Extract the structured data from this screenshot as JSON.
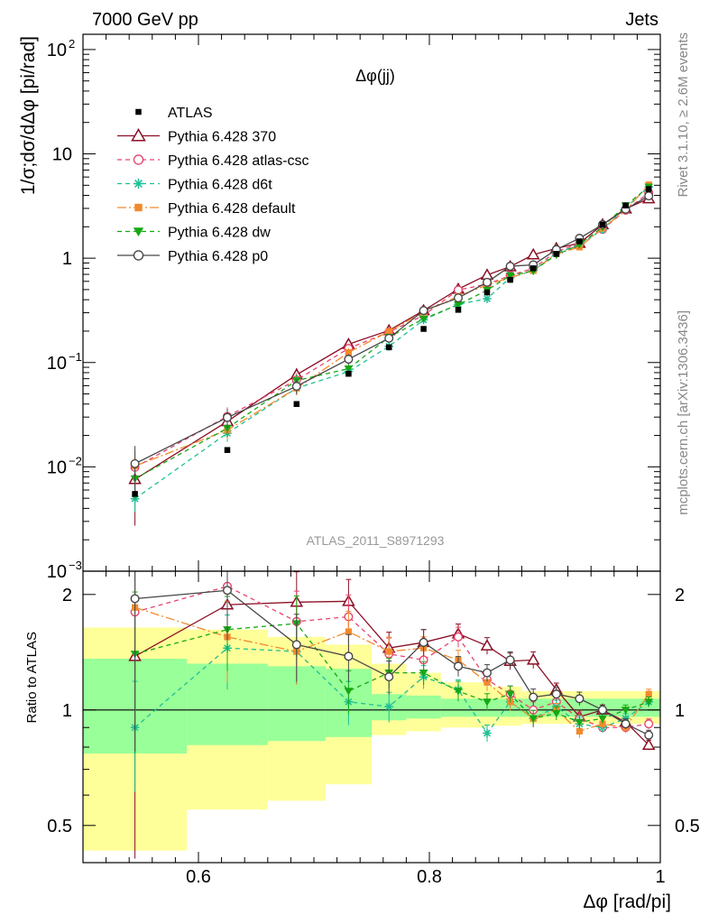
{
  "header": {
    "left": "7000 GeV pp",
    "right": "Jets"
  },
  "chart_data": {
    "type": "line",
    "title": "Δφ(jj)",
    "analysis_label": "ATLAS_2011_S8971293",
    "side_label_top": "Rivet 3.1.10, ≥ 2.6M events",
    "side_label_bottom": "mcplots.cern.ch [arXiv:1306.3436]",
    "ylabel": "1/σ;dσ/dΔφ [pi/rad]",
    "ratio_ylabel": "Ratio to ATLAS",
    "xlabel": "Δφ [rad/pi]",
    "xlim": [
      0.5,
      1.0
    ],
    "ylim": [
      0.001,
      140
    ],
    "yscale": "log",
    "ratio_ylim": [
      0.4,
      2.3
    ],
    "ratio_yscale": "log",
    "x_ticks": [
      "0.6",
      "0.8",
      "1"
    ],
    "y_ticks": [
      {
        "base": "10",
        "exp": "2"
      },
      {
        "base": "10",
        "exp": ""
      },
      {
        "base": "1",
        "exp": ""
      },
      {
        "base": "10",
        "exp": "−1"
      },
      {
        "base": "10",
        "exp": "−2"
      },
      {
        "base": "10",
        "exp": "−3"
      }
    ],
    "ratio_ticks": [
      "2",
      "1",
      "0.5"
    ],
    "legend_position": "top-left",
    "x": [
      0.545,
      0.625,
      0.685,
      0.73,
      0.765,
      0.795,
      0.825,
      0.85,
      0.87,
      0.89,
      0.91,
      0.93,
      0.95,
      0.97,
      0.99
    ],
    "data": {
      "name": "ATLAS",
      "values": [
        0.0055,
        0.0145,
        0.04,
        0.078,
        0.14,
        0.21,
        0.32,
        0.47,
        0.62,
        0.8,
        1.1,
        1.45,
        2.1,
        3.2,
        4.6
      ]
    },
    "bands": {
      "inner": [
        {
          "x0": 0.5,
          "x1": 0.59,
          "lo": 0.77,
          "hi": 1.36
        },
        {
          "x0": 0.59,
          "x1": 0.66,
          "lo": 0.81,
          "hi": 1.32
        },
        {
          "x0": 0.66,
          "x1": 0.71,
          "lo": 0.83,
          "hi": 1.3
        },
        {
          "x0": 0.71,
          "x1": 0.75,
          "lo": 0.85,
          "hi": 1.28
        },
        {
          "x0": 0.75,
          "x1": 0.78,
          "lo": 0.94,
          "hi": 1.1
        },
        {
          "x0": 0.78,
          "x1": 0.81,
          "lo": 0.95,
          "hi": 1.09
        },
        {
          "x0": 0.81,
          "x1": 1.0,
          "lo": 0.96,
          "hi": 1.07
        }
      ],
      "outer": [
        {
          "x0": 0.5,
          "x1": 0.59,
          "lo": 0.43,
          "hi": 1.64
        },
        {
          "x0": 0.59,
          "x1": 0.66,
          "lo": 0.55,
          "hi": 1.62
        },
        {
          "x0": 0.66,
          "x1": 0.71,
          "lo": 0.58,
          "hi": 1.55
        },
        {
          "x0": 0.71,
          "x1": 0.75,
          "lo": 0.64,
          "hi": 1.48
        },
        {
          "x0": 0.75,
          "x1": 0.78,
          "lo": 0.86,
          "hi": 1.32
        },
        {
          "x0": 0.78,
          "x1": 0.81,
          "lo": 0.88,
          "hi": 1.25
        },
        {
          "x0": 0.81,
          "x1": 0.85,
          "lo": 0.9,
          "hi": 1.18
        },
        {
          "x0": 0.85,
          "x1": 0.88,
          "lo": 0.91,
          "hi": 1.15
        },
        {
          "x0": 0.88,
          "x1": 1.0,
          "lo": 0.92,
          "hi": 1.12
        }
      ]
    },
    "series": [
      {
        "name": "Pythia 6.428 370",
        "color": "#8b0f25",
        "dash": "",
        "marker": "triangle-open",
        "ratio": [
          1.38,
          1.88,
          1.91,
          1.92,
          1.45,
          1.5,
          1.58,
          1.47,
          1.34,
          1.35,
          1.13,
          0.96,
          1.0,
          0.93,
          0.81
        ],
        "ratio_err": [
          0.8,
          0.25,
          0.2,
          0.14,
          0.1,
          0.08,
          0.06,
          0.05,
          0.05,
          0.05,
          0.04,
          0.04,
          0.03,
          0.03,
          0.03
        ]
      },
      {
        "name": "Pythia 6.428 atlas-csc",
        "color": "#e8446e",
        "dash": "5,4",
        "marker": "circle-open",
        "ratio": [
          1.8,
          2.1,
          1.7,
          1.75,
          1.4,
          1.35,
          1.55,
          1.2,
          1.1,
          1.0,
          1.05,
          0.95,
          0.9,
          0.9,
          0.92
        ],
        "ratio_err": [
          0.5,
          0.28,
          0.2,
          0.14,
          0.1,
          0.08,
          0.06,
          0.05,
          0.05,
          0.05,
          0.04,
          0.04,
          0.03,
          0.03,
          0.03
        ]
      },
      {
        "name": "Pythia 6.428 d6t",
        "color": "#1fbf96",
        "dash": "5,4",
        "marker": "star",
        "ratio": [
          0.9,
          1.45,
          1.42,
          1.05,
          1.02,
          1.22,
          1.13,
          0.87,
          1.05,
          0.95,
          1.02,
          0.92,
          0.9,
          0.95,
          1.05
        ],
        "ratio_err": [
          0.32,
          0.22,
          0.18,
          0.13,
          0.09,
          0.07,
          0.06,
          0.05,
          0.05,
          0.05,
          0.04,
          0.04,
          0.03,
          0.03,
          0.03
        ]
      },
      {
        "name": "Pythia 6.428 default",
        "color": "#f28a2e",
        "dash": "10,3,2,3",
        "marker": "square",
        "ratio": [
          1.85,
          1.55,
          1.42,
          1.6,
          1.42,
          1.45,
          1.35,
          1.18,
          1.05,
          0.95,
          1.0,
          0.88,
          0.92,
          0.9,
          1.1
        ],
        "ratio_err": [
          0.55,
          0.24,
          0.18,
          0.13,
          0.09,
          0.07,
          0.06,
          0.05,
          0.05,
          0.05,
          0.04,
          0.04,
          0.03,
          0.03,
          0.03
        ]
      },
      {
        "name": "Pythia 6.428 dw",
        "color": "#16a814",
        "dash": "5,4",
        "marker": "triangle-down",
        "ratio": [
          1.4,
          1.62,
          1.68,
          1.12,
          1.25,
          1.25,
          1.12,
          1.05,
          1.1,
          0.95,
          0.98,
          0.93,
          0.95,
          1.0,
          1.05
        ],
        "ratio_err": [
          0.45,
          0.22,
          0.18,
          0.13,
          0.09,
          0.07,
          0.06,
          0.05,
          0.05,
          0.05,
          0.04,
          0.04,
          0.03,
          0.03,
          0.03
        ]
      },
      {
        "name": "Pythia 6.428 p0",
        "color": "#474747",
        "dash": "",
        "marker": "circle-open",
        "ratio": [
          1.95,
          2.05,
          1.48,
          1.38,
          1.22,
          1.5,
          1.3,
          1.25,
          1.35,
          1.08,
          1.1,
          1.07,
          1.0,
          0.92,
          0.86
        ],
        "ratio_err": [
          0.6,
          0.26,
          0.2,
          0.14,
          0.1,
          0.08,
          0.06,
          0.05,
          0.05,
          0.05,
          0.04,
          0.04,
          0.03,
          0.03,
          0.03
        ]
      }
    ]
  }
}
